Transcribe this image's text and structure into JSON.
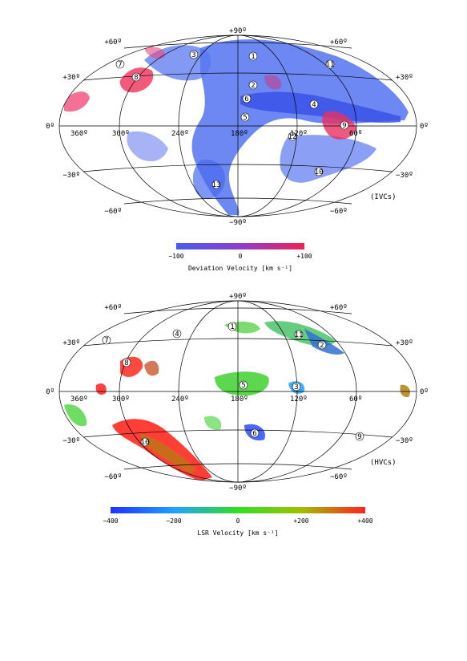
{
  "panels": [
    {
      "tag": "(IVCs)",
      "colorbar": {
        "label": "Deviation Velocity [km s⁻¹]",
        "ticks": [
          "−100",
          "0",
          "+100"
        ],
        "colors": [
          "#4a5cf0",
          "#8a3fd0",
          "#f02050"
        ]
      },
      "lat_labels": {
        "top": "+90º",
        "n60": "+60º",
        "n30": "+30º",
        "eq": "0º",
        "s30": "−30º",
        "s60": "−60º",
        "bottom": "−90º"
      },
      "lon_labels": [
        "360º",
        "300º",
        "240º",
        "180º",
        "120º",
        "60º"
      ],
      "cloud_numbers": [
        "1",
        "2",
        "3",
        "4",
        "5",
        "6",
        "7",
        "8",
        "9",
        "10",
        "11",
        "12",
        "13"
      ]
    },
    {
      "tag": "(HVCs)",
      "colorbar": {
        "label": "LSR Velocity [km s⁻¹]",
        "ticks": [
          "−400",
          "−200",
          "0",
          "+200",
          "+400"
        ],
        "colors": [
          "#2030ff",
          "#20a0ff",
          "#30e020",
          "#a0c000",
          "#ff2020"
        ]
      },
      "lat_labels": {
        "top": "+90º",
        "n60": "+60º",
        "n30": "+30º",
        "eq": "0º",
        "s30": "−30º",
        "s60": "−60º",
        "bottom": "−90º"
      },
      "lon_labels": [
        "360º",
        "300º",
        "240º",
        "180º",
        "120º",
        "60º"
      ],
      "cloud_numbers": [
        "1",
        "2",
        "3",
        "4",
        "5",
        "6",
        "7",
        "8",
        "9",
        "10",
        "11"
      ]
    }
  ]
}
